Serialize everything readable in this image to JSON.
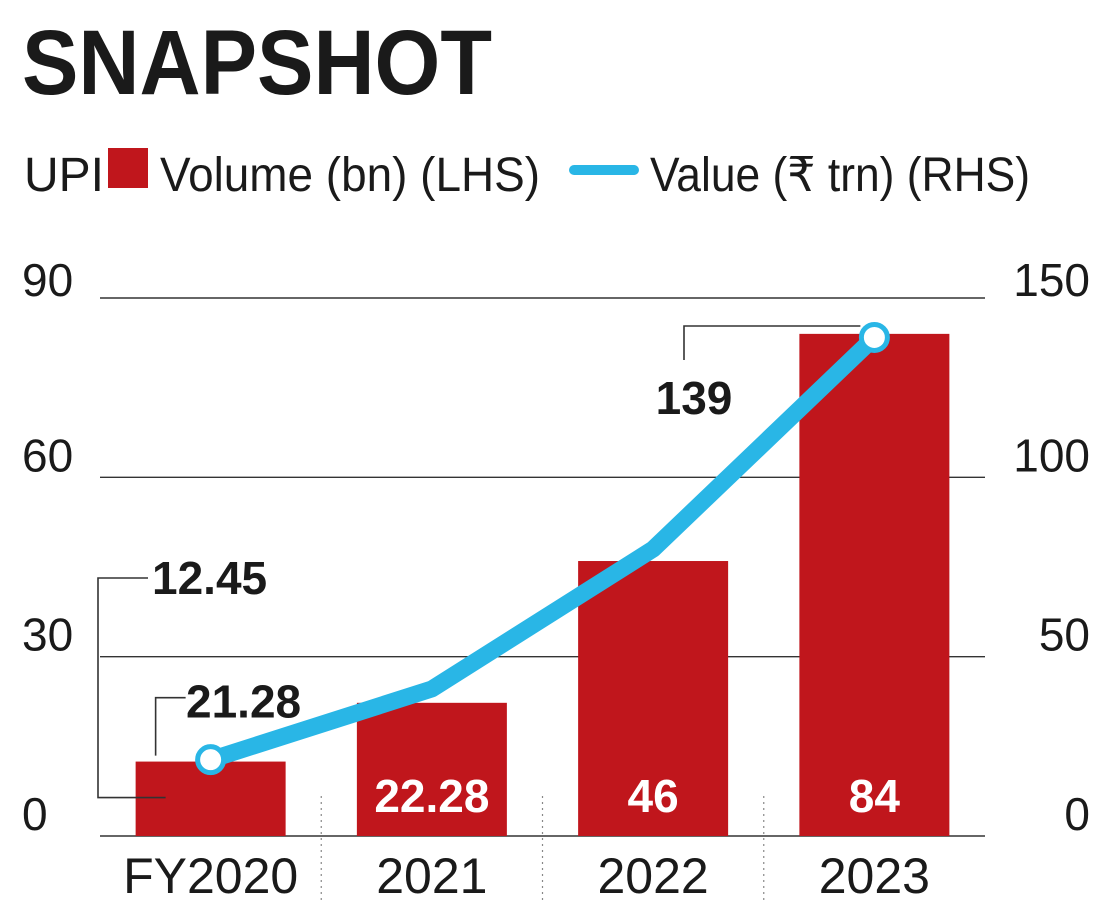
{
  "chart_data": {
    "type": "bar",
    "title": "SNAPSHOT",
    "legend": {
      "prefix": "UPI",
      "items": [
        {
          "label": "Volume (bn) (LHS)",
          "kind": "bar",
          "color": "#c0161c"
        },
        {
          "label": "Value (₹ trn) (RHS)",
          "kind": "line",
          "color": "#29b6e6"
        }
      ]
    },
    "categories": [
      "FY2020",
      "2021",
      "2022",
      "2023"
    ],
    "series": [
      {
        "name": "Volume (bn) (LHS)",
        "axis": "left",
        "type": "bar",
        "color": "#c0161c",
        "values": [
          12.45,
          22.28,
          46,
          84
        ]
      },
      {
        "name": "Value (₹ trn) (RHS)",
        "axis": "right",
        "type": "line",
        "color": "#29b6e6",
        "values": [
          21.28,
          41,
          80,
          139
        ]
      }
    ],
    "data_labels": {
      "bars": [
        "12.45",
        "22.28",
        "46",
        "84"
      ],
      "line": [
        "21.28",
        "",
        "",
        "139"
      ]
    },
    "left_axis": {
      "ylim": [
        0,
        90
      ],
      "ticks": [
        "0",
        "30",
        "60",
        "90"
      ]
    },
    "right_axis": {
      "ylim": [
        0,
        150
      ],
      "ticks": [
        "0",
        "50",
        "100",
        "150"
      ]
    },
    "grid": true
  }
}
